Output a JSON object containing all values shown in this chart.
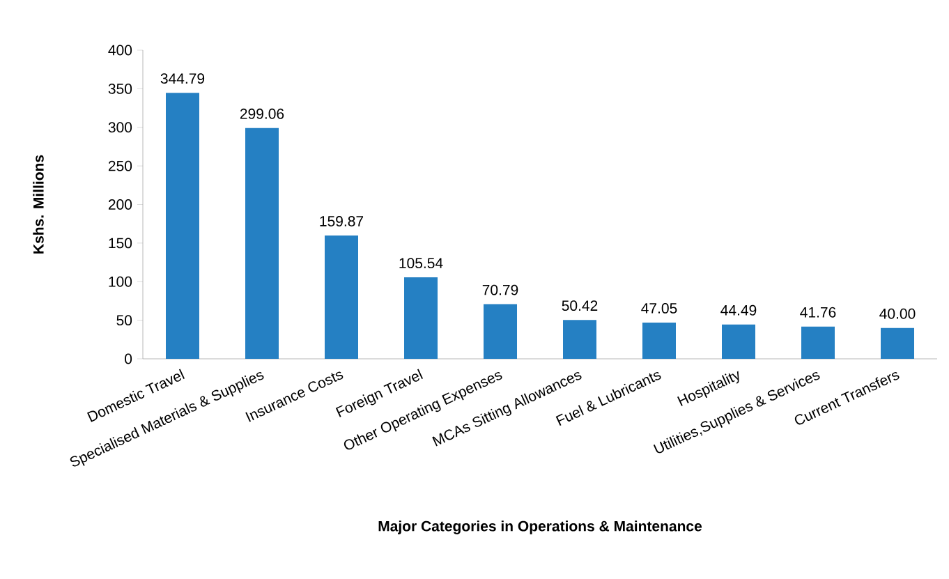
{
  "chart_data": {
    "type": "bar",
    "xlabel": "Major Categories in Operations & Maintenance",
    "ylabel": "Kshs. Millions",
    "categories": [
      "Domestic  Travel",
      "Specialised Materials & Supplies",
      "Insurance Costs",
      "Foreign Travel",
      "Other Operating Expenses",
      "MCAs Sitting Allowances",
      "Fuel & Lubricants",
      "Hospitality",
      "Utilities,Supplies & Services",
      "Current Transfers"
    ],
    "values": [
      344.79,
      299.06,
      159.87,
      105.54,
      70.79,
      50.42,
      47.05,
      44.49,
      41.76,
      40.0
    ],
    "value_labels": [
      "344.79",
      "299.06",
      "159.87",
      "105.54",
      "70.79",
      "50.42",
      "47.05",
      "44.49",
      "41.76",
      "40.00"
    ],
    "color": "#2580c3",
    "ylim": [
      0,
      400
    ],
    "yticks": [
      0,
      50,
      100,
      150,
      200,
      250,
      300,
      350,
      400
    ]
  }
}
